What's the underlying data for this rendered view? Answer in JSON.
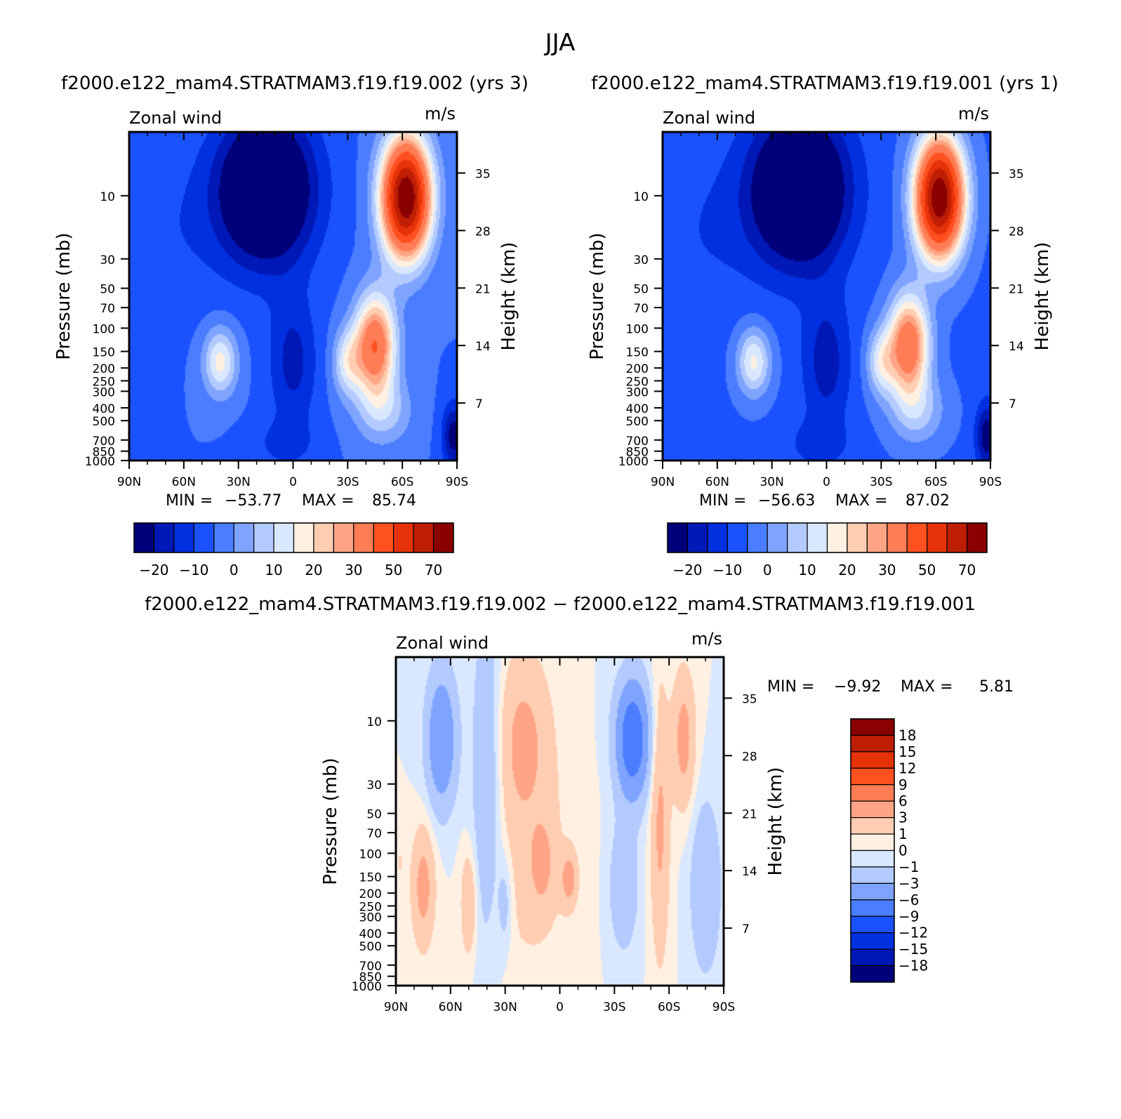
{
  "page": {
    "title": "JJA",
    "panel_a_title": "f2000.e122_mam4.STRATMAM3.f19.f19.002  (yrs  3)",
    "panel_b_title": "f2000.e122_mam4.STRATMAM3.f19.f19.001  (yrs  1)",
    "diff_title": "f2000.e122_mam4.STRATMAM3.f19.f19.002  −  f2000.e122_mam4.STRATMAM3.f19.f19.001"
  },
  "chart_data": [
    {
      "type": "heatmap",
      "panel": "a",
      "variable": "Zonal  wind",
      "units": "m/s",
      "ylabel": "Pressure  (mb)",
      "ylabel_right": "Height  (km)",
      "xticks": [
        "90N",
        "60N",
        "30N",
        "0",
        "30S",
        "60S",
        "90S"
      ],
      "xlim": [
        90,
        -90
      ],
      "yticks": [
        "10",
        "30",
        "50",
        "70",
        "100",
        "150",
        "200",
        "250",
        "300",
        "400",
        "500",
        "700",
        "850",
        "1000"
      ],
      "ylim_mb": [
        1000,
        3.3
      ],
      "height_ticks_km": [
        "35",
        "28",
        "21",
        "14",
        "7"
      ],
      "stats": {
        "min_label": "MIN  =",
        "min": "−53.77",
        "max_label": "MAX  =",
        "max": "85.74"
      },
      "levels": [
        -25,
        -20,
        -15,
        -10,
        -5,
        0,
        5,
        10,
        15,
        20,
        25,
        30,
        40,
        50,
        60,
        70
      ],
      "colorbar_labels": [
        "−20",
        "−10",
        "0",
        "10",
        "20",
        "30",
        "50",
        "70"
      ],
      "colors": [
        "#00007a",
        "#0018b5",
        "#0030e0",
        "#1a52ff",
        "#4a7dff",
        "#7ea4ff",
        "#b3caff",
        "#d9e8ff",
        "#fff0e2",
        "#ffcdb1",
        "#ffa585",
        "#ff7d55",
        "#ff5020",
        "#e63208",
        "#bd1e04",
        "#8a0000"
      ]
    },
    {
      "type": "heatmap",
      "panel": "b",
      "variable": "Zonal  wind",
      "units": "m/s",
      "ylabel": "Pressure  (mb)",
      "ylabel_right": "Height  (km)",
      "xticks": [
        "90N",
        "60N",
        "30N",
        "0",
        "30S",
        "60S",
        "90S"
      ],
      "xlim": [
        90,
        -90
      ],
      "yticks": [
        "10",
        "30",
        "50",
        "70",
        "100",
        "150",
        "200",
        "250",
        "300",
        "400",
        "500",
        "700",
        "850",
        "1000"
      ],
      "ylim_mb": [
        1000,
        3.3
      ],
      "height_ticks_km": [
        "35",
        "28",
        "21",
        "14",
        "7"
      ],
      "stats": {
        "min_label": "MIN  =",
        "min": "−56.63",
        "max_label": "MAX  =",
        "max": "87.02"
      },
      "levels": [
        -25,
        -20,
        -15,
        -10,
        -5,
        0,
        5,
        10,
        15,
        20,
        25,
        30,
        40,
        50,
        60,
        70
      ],
      "colorbar_labels": [
        "−20",
        "−10",
        "0",
        "10",
        "20",
        "30",
        "50",
        "70"
      ],
      "colors": [
        "#00007a",
        "#0018b5",
        "#0030e0",
        "#1a52ff",
        "#4a7dff",
        "#7ea4ff",
        "#b3caff",
        "#d9e8ff",
        "#fff0e2",
        "#ffcdb1",
        "#ffa585",
        "#ff7d55",
        "#ff5020",
        "#e63208",
        "#bd1e04",
        "#8a0000"
      ]
    },
    {
      "type": "heatmap",
      "panel": "diff",
      "variable": "Zonal  wind",
      "units": "m/s",
      "ylabel": "Pressure  (mb)",
      "ylabel_right": "Height  (km)",
      "xticks": [
        "90N",
        "60N",
        "30N",
        "0",
        "30S",
        "60S",
        "90S"
      ],
      "xlim": [
        90,
        -90
      ],
      "yticks": [
        "10",
        "30",
        "50",
        "70",
        "100",
        "150",
        "200",
        "250",
        "300",
        "400",
        "500",
        "700",
        "850",
        "1000"
      ],
      "ylim_mb": [
        1000,
        3.3
      ],
      "height_ticks_km": [
        "35",
        "28",
        "21",
        "14",
        "7"
      ],
      "stats": {
        "min_label": "MIN  =",
        "min": "−9.92",
        "max_label": "MAX  =",
        "max": "5.81"
      },
      "levels": [
        18,
        15,
        12,
        9,
        6,
        3,
        1,
        0,
        -1,
        -3,
        -6,
        -9,
        -12,
        -15,
        -18
      ],
      "colorbar_labels": [
        "18",
        "15",
        "12",
        "9",
        "6",
        "3",
        "1",
        "0",
        "−1",
        "−3",
        "−6",
        "−9",
        "−12",
        "−15",
        "−18"
      ],
      "colors": [
        "#8a0000",
        "#bd1e04",
        "#e63208",
        "#ff5020",
        "#ff7d55",
        "#ffa585",
        "#ffcdb1",
        "#fff0e2",
        "#d9e8ff",
        "#b3caff",
        "#7ea4ff",
        "#4a7dff",
        "#1a52ff",
        "#0030e0",
        "#0018b5",
        "#00007a"
      ]
    }
  ]
}
